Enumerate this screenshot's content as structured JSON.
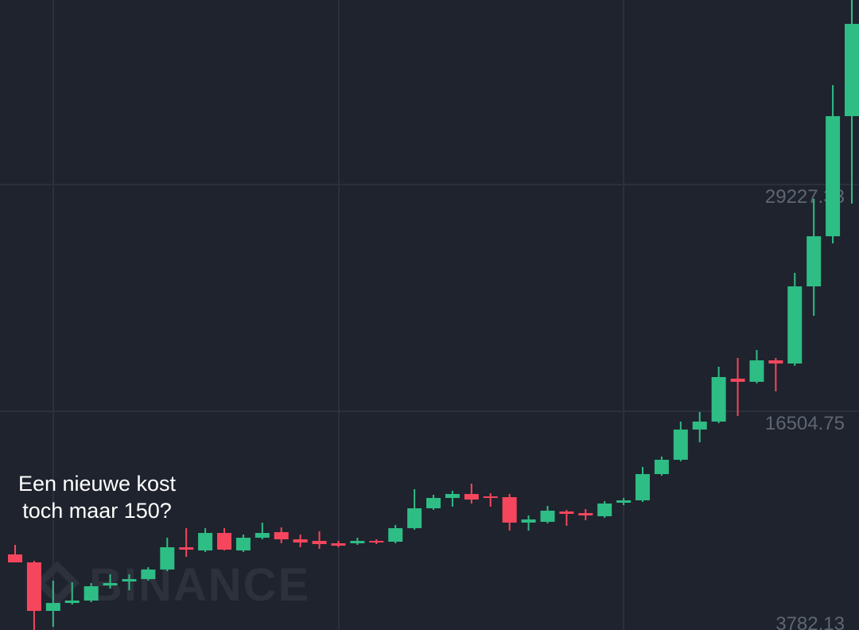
{
  "chart_data": {
    "type": "candlestick",
    "annotation": [
      "Een nieuwe kost",
      "toch maar 150?"
    ],
    "watermark": "BINANCE",
    "up_color": "#2ebd85",
    "down_color": "#f6465d",
    "open": [
      8470,
      8023,
      5300,
      5747,
      5881,
      6729,
      6952,
      7086,
      7622,
      8872,
      8693,
      9675,
      8693,
      9407,
      9720,
      9318,
      9229,
      9095,
      9095,
      9229,
      9184,
      9943,
      11059,
      11639,
      11862,
      11729,
      11684,
      10255,
      10300,
      10880,
      10791,
      10613,
      11371,
      11505,
      12978,
      13782,
      15478,
      15925,
      18335,
      18157,
      19362,
      19183,
      23513,
      26326,
      33066
    ],
    "high": [
      9005,
      8113,
      6997,
      6907,
      6863,
      7354,
      7354,
      7756,
      9407,
      9943,
      9943,
      9943,
      9586,
      10255,
      9988,
      9586,
      9765,
      9229,
      9407,
      9318,
      10121,
      12130,
      11818,
      12041,
      12443,
      11907,
      11862,
      10657,
      11193,
      10970,
      11014,
      11461,
      11639,
      13380,
      13961,
      15925,
      16460,
      19005,
      19496,
      19942,
      19496,
      24272,
      28424,
      34807,
      39584
    ],
    "low": [
      8023,
      4229,
      4408,
      5657,
      5791,
      6550,
      6461,
      6997,
      7532,
      8336,
      8604,
      8693,
      8604,
      9318,
      9095,
      8872,
      8782,
      8872,
      9005,
      9050,
      9095,
      9854,
      10970,
      11148,
      11327,
      11148,
      9809,
      9809,
      10211,
      10077,
      10389,
      10523,
      11237,
      11416,
      12889,
      13693,
      14764,
      15835,
      16237,
      18067,
      17621,
      19049,
      21862,
      25924,
      28156
    ],
    "close": [
      8023,
      5300,
      5747,
      5881,
      6684,
      6863,
      7086,
      7622,
      8872,
      8738,
      9675,
      8738,
      9407,
      9675,
      9318,
      9139,
      9050,
      8961,
      9229,
      9139,
      9943,
      11059,
      11639,
      11862,
      11550,
      11639,
      10255,
      10434,
      10925,
      10746,
      10657,
      11327,
      11505,
      12978,
      13782,
      15478,
      15925,
      18425,
      18157,
      19362,
      19183,
      23513,
      26326,
      33066,
      38245
    ],
    "ylim": [
      3782.13,
      39584
    ],
    "yticks": [
      3782.13,
      16504.75,
      29227.33
    ],
    "grid": true
  }
}
